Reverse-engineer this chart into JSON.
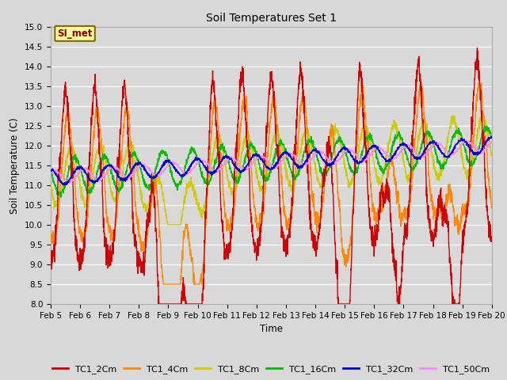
{
  "title": "Soil Temperatures Set 1",
  "xlabel": "Time",
  "ylabel": "Soil Temperature (C)",
  "ylim": [
    8.0,
    15.0
  ],
  "yticks": [
    8.0,
    8.5,
    9.0,
    9.5,
    10.0,
    10.5,
    11.0,
    11.5,
    12.0,
    12.5,
    13.0,
    13.5,
    14.0,
    14.5,
    15.0
  ],
  "xtick_labels": [
    "Feb 5",
    "Feb 6",
    "Feb 7",
    "Feb 8",
    "Feb 9",
    "Feb 10",
    "Feb 11",
    "Feb 12",
    "Feb 13",
    "Feb 14",
    "Feb 15",
    "Feb 16",
    "Feb 17",
    "Feb 18",
    "Feb 19",
    "Feb 20"
  ],
  "legend_labels": [
    "TC1_2Cm",
    "TC1_4Cm",
    "TC1_8Cm",
    "TC1_16Cm",
    "TC1_32Cm",
    "TC1_50Cm"
  ],
  "colors": {
    "TC1_2Cm": "#cc0000",
    "TC1_4Cm": "#ff8800",
    "TC1_8Cm": "#cccc00",
    "TC1_16Cm": "#00bb00",
    "TC1_32Cm": "#0000cc",
    "TC1_50Cm": "#ff88ff"
  },
  "bg_color": "#d8d8d8",
  "plot_bg": "#d8d8d8",
  "annotation_text": "SI_met",
  "annotation_bg": "#ffff99",
  "annotation_border": "#886600"
}
